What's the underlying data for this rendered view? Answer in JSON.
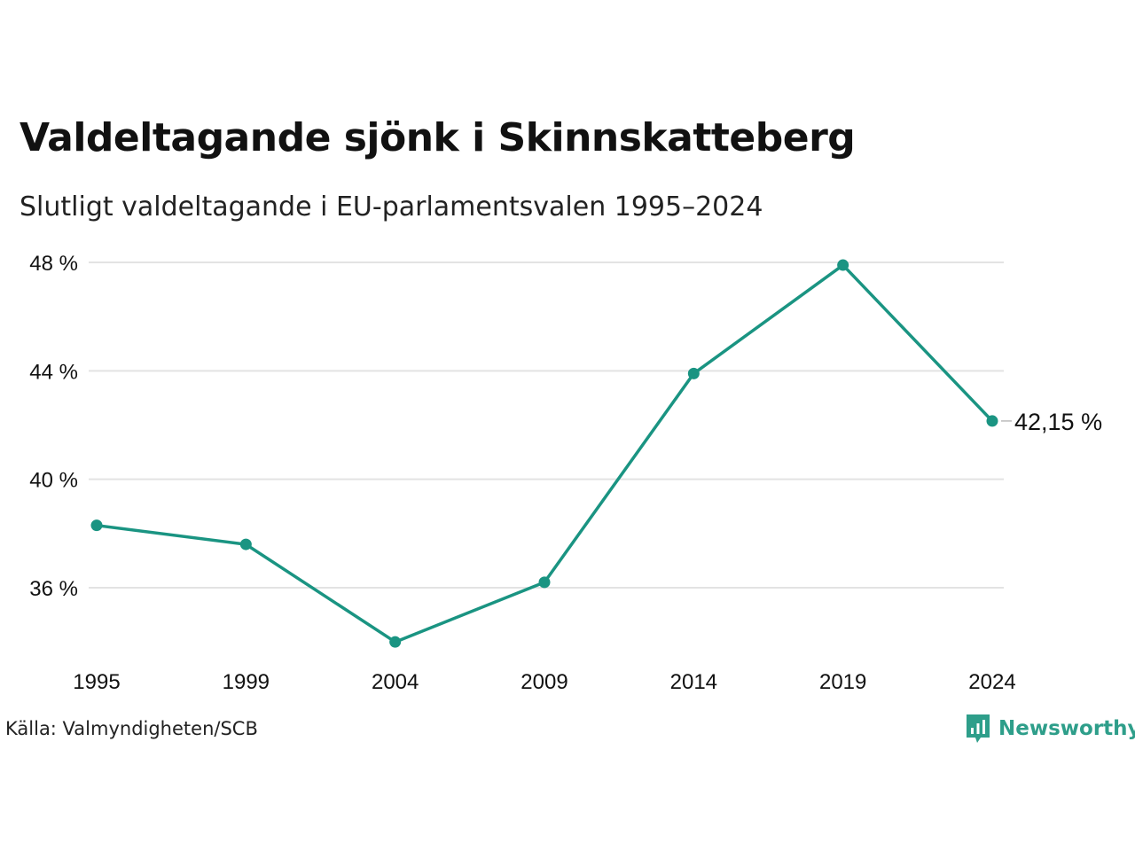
{
  "header": {
    "title": "Valdeltagande sjönk i Skinnskatteberg",
    "subtitle": "Slutligt valdeltagande i EU-parlamentsvalen 1995–2024"
  },
  "footer": {
    "source": "Källa: Valmyndigheten/SCB",
    "brand": "Newsworthy",
    "brand_icon": "newsworthy-logo-icon"
  },
  "colors": {
    "line": "#1a9482",
    "grid": "#e3e3e3",
    "text": "#111111",
    "brand": "#2e9e8a"
  },
  "chart_data": {
    "type": "line",
    "title": "Valdeltagande sjönk i Skinnskatteberg",
    "subtitle": "Slutligt valdeltagande i EU-parlamentsvalen 1995–2024",
    "x": [
      "1995",
      "1999",
      "2004",
      "2009",
      "2014",
      "2019",
      "2024"
    ],
    "series": [
      {
        "values": [
          38.3,
          37.6,
          34.0,
          36.2,
          43.9,
          47.9,
          42.15
        ]
      }
    ],
    "yticks": [
      36,
      40,
      44,
      48
    ],
    "ytick_labels": [
      "36 %",
      "40 %",
      "44 %",
      "48 %"
    ],
    "ylim": [
      34,
      48
    ],
    "end_label": "42,15 %",
    "grid": true,
    "legend": "none",
    "xlabel": "",
    "ylabel": ""
  }
}
